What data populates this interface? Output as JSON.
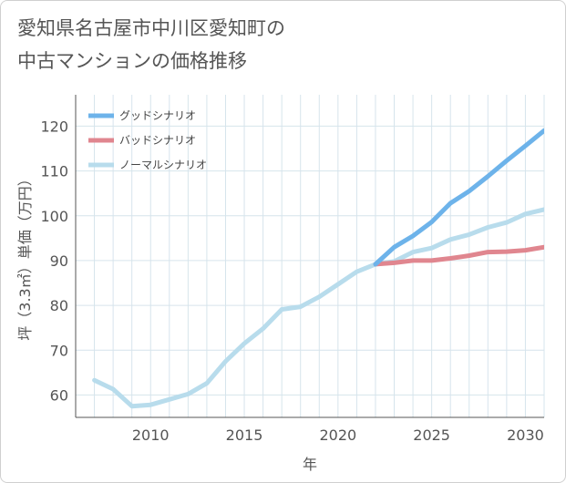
{
  "title_lines": [
    "愛知県名古屋市中川区愛知町の",
    "中古マンションの価格推移"
  ],
  "chart_data": {
    "type": "line",
    "title": "愛知県名古屋市中川区愛知町の中古マンションの価格推移",
    "xlabel": "年",
    "ylabel": "坪（3.3㎡）単価（万円）",
    "xlim": [
      2006,
      2031
    ],
    "ylim": [
      55,
      127
    ],
    "x_ticks": [
      2010,
      2015,
      2020,
      2025,
      2030
    ],
    "y_ticks": [
      60,
      70,
      80,
      90,
      100,
      110,
      120
    ],
    "grid": true,
    "legend_position": "top-left",
    "series": [
      {
        "name": "グッドシナリオ",
        "color": "#6db3ea",
        "x": [
          2022,
          2023,
          2024,
          2025,
          2026,
          2027,
          2028,
          2029,
          2030,
          2031
        ],
        "y": [
          89.2,
          93.0,
          95.5,
          98.6,
          102.8,
          105.5,
          108.8,
          112.3,
          115.6,
          119.0
        ]
      },
      {
        "name": "バッドシナリオ",
        "color": "#e0868f",
        "x": [
          2022,
          2023,
          2024,
          2025,
          2026,
          2027,
          2028,
          2029,
          2030,
          2031
        ],
        "y": [
          89.2,
          89.5,
          90.0,
          90.0,
          90.5,
          91.1,
          91.9,
          92.0,
          92.3,
          93.0
        ]
      },
      {
        "name": "ノーマルシナリオ",
        "color": "#b8dcec",
        "x": [
          2007,
          2008,
          2009,
          2010,
          2011,
          2012,
          2013,
          2014,
          2015,
          2016,
          2017,
          2018,
          2019,
          2020,
          2021,
          2022,
          2023,
          2024,
          2025,
          2026,
          2027,
          2028,
          2029,
          2030,
          2031
        ],
        "y": [
          63.3,
          61.3,
          57.5,
          57.8,
          59.0,
          60.2,
          62.6,
          67.5,
          71.5,
          74.8,
          79.1,
          79.7,
          81.9,
          84.7,
          87.5,
          89.2,
          89.8,
          91.9,
          92.8,
          94.7,
          95.8,
          97.4,
          98.5,
          100.4,
          101.4
        ]
      }
    ]
  }
}
